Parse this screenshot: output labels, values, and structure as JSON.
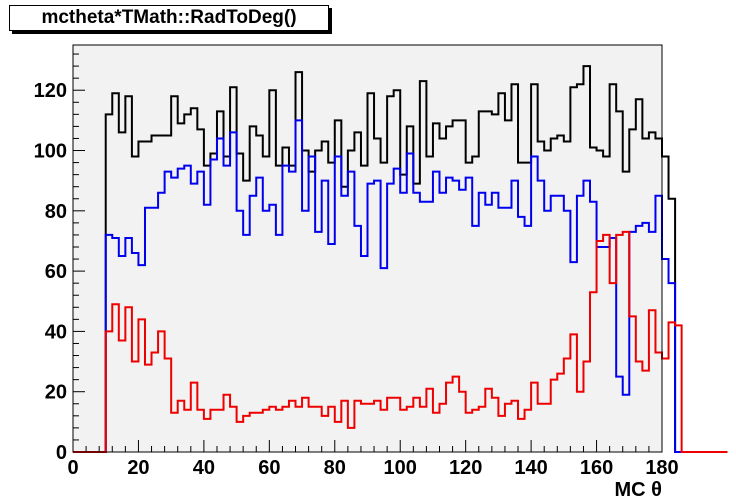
{
  "title": "mctheta*TMath::RadToDeg()",
  "colors": {
    "frame_fill": "#f2f2f2",
    "black_series": "#000000",
    "blue_series": "#0000ee",
    "red_series": "#ee0000"
  },
  "chart_data": {
    "type": "line",
    "histogram": true,
    "title": "mctheta*TMath::RadToDeg()",
    "xlabel": "MC θ",
    "ylabel": "",
    "xlim": [
      0,
      180
    ],
    "ylim": [
      0,
      135
    ],
    "bin_width": 2,
    "bin_start": 0,
    "grid": false,
    "legend": "none",
    "xticks": [
      "0",
      "20",
      "40",
      "60",
      "80",
      "100",
      "120",
      "140",
      "160",
      "180"
    ],
    "yticks": [
      "0",
      "20",
      "40",
      "60",
      "80",
      "100",
      "120"
    ],
    "series": [
      {
        "color": "#000000",
        "values": [
          0,
          0,
          0,
          0,
          0,
          112,
          119,
          106,
          118,
          98,
          103,
          103,
          105,
          105,
          105,
          118,
          109,
          112,
          114,
          107,
          95,
          99,
          113,
          98,
          121,
          99,
          90,
          108,
          105,
          98,
          120,
          95,
          101,
          95,
          126,
          100,
          93,
          100,
          103,
          96,
          110,
          88,
          100,
          106,
          95,
          119,
          104,
          96,
          118,
          120,
          92,
          108,
          89,
          123,
          98,
          109,
          104,
          108,
          110,
          110,
          96,
          98,
          113,
          113,
          112,
          119,
          110,
          122,
          96,
          96,
          122,
          103,
          100,
          104,
          105,
          103,
          121,
          122,
          128,
          101,
          100,
          98,
          122,
          113,
          93,
          107,
          117,
          104,
          106,
          104,
          98,
          84,
          0,
          0,
          0,
          0,
          0,
          0,
          0,
          0
        ]
      },
      {
        "color": "#0000ee",
        "values": [
          0,
          0,
          0,
          0,
          0,
          72,
          71,
          65,
          71,
          66,
          62,
          81,
          81,
          86,
          93,
          91,
          94,
          95,
          89,
          93,
          82,
          97,
          104,
          95,
          106,
          80,
          72,
          85,
          91,
          80,
          82,
          72,
          95,
          93,
          110,
          80,
          98,
          73,
          90,
          69,
          98,
          85,
          93,
          75,
          65,
          89,
          90,
          61,
          89,
          94,
          86,
          99,
          86,
          83,
          83,
          93,
          86,
          91,
          90,
          87,
          91,
          75,
          86,
          82,
          86,
          81,
          81,
          90,
          78,
          75,
          98,
          90,
          80,
          85,
          85,
          80,
          63,
          85,
          90,
          83,
          68,
          68,
          71,
          25,
          19,
          73,
          75,
          76,
          73,
          85,
          64,
          56,
          0,
          0,
          0,
          0,
          0,
          0,
          0,
          0
        ]
      },
      {
        "color": "#ee0000",
        "values": [
          0,
          0,
          0,
          0,
          0,
          40,
          49,
          37,
          48,
          30,
          44,
          29,
          33,
          40,
          31,
          13,
          17,
          14,
          23,
          14,
          11,
          14,
          14,
          19,
          15,
          10,
          12,
          13,
          13,
          14,
          15,
          14,
          15,
          17,
          15,
          18,
          15,
          15,
          12,
          15,
          10,
          17,
          8,
          17,
          16,
          16,
          17,
          14,
          18,
          18,
          14,
          15,
          18,
          15,
          21,
          13,
          16,
          23,
          25,
          20,
          13,
          14,
          15,
          21,
          18,
          12,
          16,
          17,
          11,
          14,
          23,
          16,
          16,
          24,
          26,
          31,
          39,
          20,
          30,
          53,
          70,
          72,
          56,
          72,
          73,
          45,
          30,
          27,
          47,
          33,
          31,
          43,
          42,
          0,
          0,
          0,
          0,
          0,
          0,
          0
        ]
      }
    ]
  }
}
